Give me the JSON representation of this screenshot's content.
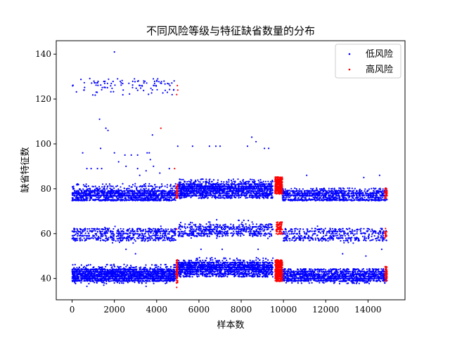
{
  "chart_data": {
    "type": "scatter",
    "title": "不同风险等级与特征缺省数量的分布",
    "xlabel": "样本数",
    "ylabel": "缺省特征数",
    "xlim": [
      -750,
      15750
    ],
    "ylim": [
      30.5,
      146
    ],
    "xticks": [
      0,
      2000,
      4000,
      6000,
      8000,
      10000,
      12000,
      14000
    ],
    "yticks": [
      40,
      60,
      80,
      100,
      120,
      140
    ],
    "grid": false,
    "legend_position": "top-right",
    "series": [
      {
        "name": "低风险",
        "color": "#0000ff",
        "points": [
          [
            2000,
            141
          ],
          [
            2150,
            129
          ],
          [
            2950,
            129
          ],
          [
            4050,
            129
          ],
          [
            4350,
            128
          ],
          [
            1300,
            111
          ],
          [
            1600,
            107
          ],
          [
            1700,
            106
          ],
          [
            3800,
            104
          ],
          [
            500,
            96
          ],
          [
            1350,
            98
          ],
          [
            2000,
            96
          ],
          [
            2500,
            95
          ],
          [
            2800,
            95
          ],
          [
            3100,
            95
          ],
          [
            3550,
            96
          ],
          [
            3650,
            96
          ],
          [
            5000,
            99
          ],
          [
            5700,
            99
          ],
          [
            6500,
            99
          ],
          [
            6800,
            99
          ],
          [
            7000,
            99
          ],
          [
            8300,
            99
          ],
          [
            8500,
            103
          ],
          [
            8700,
            101
          ],
          [
            9100,
            98
          ],
          [
            9300,
            98
          ],
          [
            700,
            89
          ],
          [
            900,
            89
          ],
          [
            1200,
            89
          ],
          [
            1400,
            89
          ],
          [
            2200,
            92
          ],
          [
            2550,
            90
          ],
          [
            3100,
            89
          ],
          [
            3200,
            86
          ],
          [
            3700,
            93
          ],
          [
            3850,
            90
          ],
          [
            3500,
            88
          ],
          [
            4150,
            87
          ],
          [
            4600,
            89
          ],
          [
            11100,
            86
          ],
          [
            13800,
            85
          ],
          [
            14550,
            86
          ],
          [
            6700,
            84
          ],
          [
            8100,
            84
          ],
          [
            2550,
            53
          ],
          [
            3000,
            51
          ],
          [
            6100,
            53
          ],
          [
            7100,
            53
          ],
          [
            8800,
            53
          ],
          [
            12800,
            51
          ],
          [
            13900,
            50
          ],
          [
            14650,
            53
          ],
          [
            700,
            36.5
          ],
          [
            1500,
            37
          ],
          [
            3500,
            36.5
          ],
          [
            10400,
            38
          ],
          [
            12000,
            38.5
          ],
          [
            13400,
            39
          ]
        ],
        "bands": [
          {
            "x": [
              0,
              4850
            ],
            "y": [
              125,
              129
            ],
            "density": 70
          },
          {
            "x": [
              0,
              4850
            ],
            "y": [
              122,
              125
            ],
            "density": 30
          },
          {
            "x": [
              0,
              4900
            ],
            "y": [
              75,
              75
            ],
            "density": 260
          },
          {
            "x": [
              0,
              4900
            ],
            "y": [
              76,
              79
            ],
            "density": 900
          },
          {
            "x": [
              0,
              4900
            ],
            "y": [
              79,
              82
            ],
            "density": 160
          },
          {
            "x": [
              5000,
              9500
            ],
            "y": [
              76,
              79
            ],
            "density": 600
          },
          {
            "x": [
              5000,
              9500
            ],
            "y": [
              79,
              82
            ],
            "density": 900
          },
          {
            "x": [
              5000,
              9500
            ],
            "y": [
              82,
              84
            ],
            "density": 120
          },
          {
            "x": [
              9950,
              14900
            ],
            "y": [
              75,
              75
            ],
            "density": 260
          },
          {
            "x": [
              9950,
              14900
            ],
            "y": [
              76,
              79
            ],
            "density": 700
          },
          {
            "x": [
              9950,
              14900
            ],
            "y": [
              79,
              80
            ],
            "density": 100
          },
          {
            "x": [
              0,
              4900
            ],
            "y": [
              57,
              59
            ],
            "density": 260
          },
          {
            "x": [
              0,
              4900
            ],
            "y": [
              60,
              62
            ],
            "density": 260
          },
          {
            "x": [
              0,
              4900
            ],
            "y": [
              56,
              63
            ],
            "density": 60
          },
          {
            "x": [
              5000,
              9500
            ],
            "y": [
              59,
              61
            ],
            "density": 220
          },
          {
            "x": [
              5000,
              9500
            ],
            "y": [
              61,
              64
            ],
            "density": 280
          },
          {
            "x": [
              5000,
              9500
            ],
            "y": [
              58,
              66
            ],
            "density": 60
          },
          {
            "x": [
              9950,
              14900
            ],
            "y": [
              57,
              59
            ],
            "density": 200
          },
          {
            "x": [
              9950,
              14900
            ],
            "y": [
              60,
              62
            ],
            "density": 200
          },
          {
            "x": [
              9950,
              14900
            ],
            "y": [
              56,
              63
            ],
            "density": 40
          },
          {
            "x": [
              0,
              4900
            ],
            "y": [
              39,
              40
            ],
            "density": 400
          },
          {
            "x": [
              0,
              4900
            ],
            "y": [
              40,
              44
            ],
            "density": 1500
          },
          {
            "x": [
              0,
              4900
            ],
            "y": [
              44,
              46
            ],
            "density": 120
          },
          {
            "x": [
              0,
              4900
            ],
            "y": [
              38,
              39
            ],
            "density": 60
          },
          {
            "x": [
              5000,
              9500
            ],
            "y": [
              41,
              44
            ],
            "density": 600
          },
          {
            "x": [
              5000,
              9500
            ],
            "y": [
              44,
              47
            ],
            "density": 1000
          },
          {
            "x": [
              5000,
              9500
            ],
            "y": [
              47,
              49
            ],
            "density": 90
          },
          {
            "x": [
              9950,
              14900
            ],
            "y": [
              39,
              40
            ],
            "density": 350
          },
          {
            "x": [
              9950,
              14900
            ],
            "y": [
              40,
              44
            ],
            "density": 1000
          },
          {
            "x": [
              9950,
              14900
            ],
            "y": [
              38,
              39
            ],
            "density": 60
          }
        ]
      },
      {
        "name": "高风险",
        "color": "#ff0000",
        "points": [
          [
            4200,
            107
          ],
          [
            4850,
            89
          ],
          [
            4980,
            126
          ],
          [
            5000,
            124
          ],
          [
            4950,
            122
          ],
          [
            4900,
            78
          ],
          [
            4950,
            62
          ],
          [
            4900,
            42
          ],
          [
            4950,
            36
          ]
        ],
        "bands": [
          {
            "x": [
              4930,
              5000
            ],
            "y": [
              76,
              82
            ],
            "density": 40
          },
          {
            "x": [
              4930,
              5000
            ],
            "y": [
              38,
              48
            ],
            "density": 80
          },
          {
            "x": [
              9600,
              9950
            ],
            "y": [
              78,
              85
            ],
            "density": 400
          },
          {
            "x": [
              9650,
              9950
            ],
            "y": [
              60,
              65
            ],
            "density": 90
          },
          {
            "x": [
              9600,
              9950
            ],
            "y": [
              39,
              48
            ],
            "density": 500
          },
          {
            "x": [
              14800,
              14900
            ],
            "y": [
              76,
              80
            ],
            "density": 40
          },
          {
            "x": [
              14800,
              14900
            ],
            "y": [
              58,
              62
            ],
            "density": 20
          },
          {
            "x": [
              14800,
              14900
            ],
            "y": [
              39,
              45
            ],
            "density": 50
          }
        ]
      }
    ]
  }
}
